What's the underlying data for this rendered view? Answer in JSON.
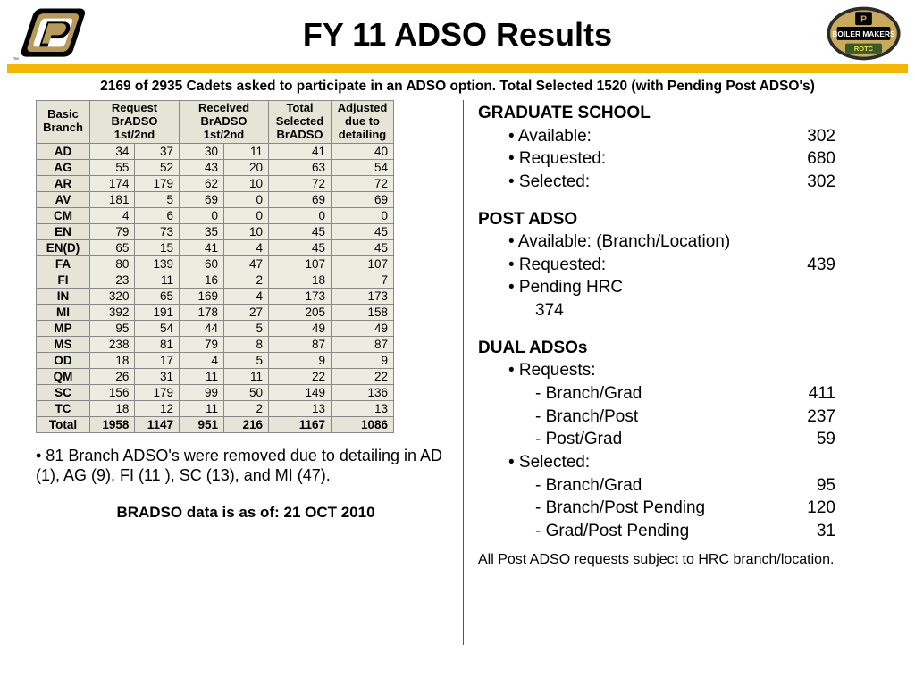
{
  "title": "FY 11 ADSO Results",
  "subtitle": "2169 of 2935 Cadets asked to participate in an ADSO option.  Total Selected 1520 (with Pending Post ADSO's)",
  "table": {
    "headers": {
      "c0": "Basic Branch",
      "c1": "Request BrADSO 1st/2nd",
      "c2": "Received BrADSO 1st/2nd",
      "c3": "Total Selected BrADSO",
      "c4": "Adjusted due to detailing"
    },
    "rows": [
      {
        "b": "AD",
        "r1": 34,
        "r2": 37,
        "rc1": 30,
        "rc2": 11,
        "tot": 41,
        "adj": 40
      },
      {
        "b": "AG",
        "r1": 55,
        "r2": 52,
        "rc1": 43,
        "rc2": 20,
        "tot": 63,
        "adj": 54
      },
      {
        "b": "AR",
        "r1": 174,
        "r2": 179,
        "rc1": 62,
        "rc2": 10,
        "tot": 72,
        "adj": 72
      },
      {
        "b": "AV",
        "r1": 181,
        "r2": 5,
        "rc1": 69,
        "rc2": 0,
        "tot": 69,
        "adj": 69
      },
      {
        "b": "CM",
        "r1": 4,
        "r2": 6,
        "rc1": 0,
        "rc2": 0,
        "tot": 0,
        "adj": 0
      },
      {
        "b": "EN",
        "r1": 79,
        "r2": 73,
        "rc1": 35,
        "rc2": 10,
        "tot": 45,
        "adj": 45
      },
      {
        "b": "EN(D)",
        "r1": 65,
        "r2": 15,
        "rc1": 41,
        "rc2": 4,
        "tot": 45,
        "adj": 45
      },
      {
        "b": "FA",
        "r1": 80,
        "r2": 139,
        "rc1": 60,
        "rc2": 47,
        "tot": 107,
        "adj": 107
      },
      {
        "b": "FI",
        "r1": 23,
        "r2": 11,
        "rc1": 16,
        "rc2": 2,
        "tot": 18,
        "adj": 7
      },
      {
        "b": "IN",
        "r1": 320,
        "r2": 65,
        "rc1": 169,
        "rc2": 4,
        "tot": 173,
        "adj": 173
      },
      {
        "b": "MI",
        "r1": 392,
        "r2": 191,
        "rc1": 178,
        "rc2": 27,
        "tot": 205,
        "adj": 158
      },
      {
        "b": "MP",
        "r1": 95,
        "r2": 54,
        "rc1": 44,
        "rc2": 5,
        "tot": 49,
        "adj": 49
      },
      {
        "b": "MS",
        "r1": 238,
        "r2": 81,
        "rc1": 79,
        "rc2": 8,
        "tot": 87,
        "adj": 87
      },
      {
        "b": "OD",
        "r1": 18,
        "r2": 17,
        "rc1": 4,
        "rc2": 5,
        "tot": 9,
        "adj": 9
      },
      {
        "b": "QM",
        "r1": 26,
        "r2": 31,
        "rc1": 11,
        "rc2": 11,
        "tot": 22,
        "adj": 22
      },
      {
        "b": "SC",
        "r1": 156,
        "r2": 179,
        "rc1": 99,
        "rc2": 50,
        "tot": 149,
        "adj": 136
      },
      {
        "b": "TC",
        "r1": 18,
        "r2": 12,
        "rc1": 11,
        "rc2": 2,
        "tot": 13,
        "adj": 13
      }
    ],
    "total": {
      "b": "Total",
      "r1": 1958,
      "r2": 1147,
      "rc1": 951,
      "rc2": 216,
      "tot": 1167,
      "adj": 1086
    }
  },
  "footnote1": "• 81 Branch ADSO's were removed due to detailing in AD (1), AG (9), FI (11 ), SC (13), and MI (47).",
  "footnote2": "BRADSO data is as of: 21 OCT 2010",
  "right": {
    "grad_head": "GRADUATE SCHOOL",
    "grad_avail_l": "• Available:",
    "grad_avail_v": "302",
    "grad_req_l": "• Requested:",
    "grad_req_v": "680",
    "grad_sel_l": "• Selected:",
    "grad_sel_v": "302",
    "post_head": "POST ADSO",
    "post_avail": "• Available: (Branch/Location)",
    "post_req_l": "• Requested:",
    "post_req_v": "439",
    "post_pend": "• Pending HRC",
    "post_pend_v": "374",
    "dual_head": "DUAL ADSOs",
    "dual_req": "• Requests:",
    "dual_bg_l": "- Branch/Grad",
    "dual_bg_v": "411",
    "dual_bp_l": "- Branch/Post",
    "dual_bp_v": "237",
    "dual_pg_l": "- Post/Grad",
    "dual_pg_v": "59",
    "dual_sel": "• Selected:",
    "sel_bg_l": "- Branch/Grad",
    "sel_bg_v": "95",
    "sel_bp_l": "- Branch/Post Pending",
    "sel_bp_v": "120",
    "sel_gp_l": "- Grad/Post Pending",
    "sel_gp_v": "31",
    "foot": "All Post ADSO requests subject to HRC branch/location."
  },
  "colors": {
    "gold": "#f2b705",
    "table_bg": "#edece0",
    "table_head": "#e5e4d6"
  }
}
